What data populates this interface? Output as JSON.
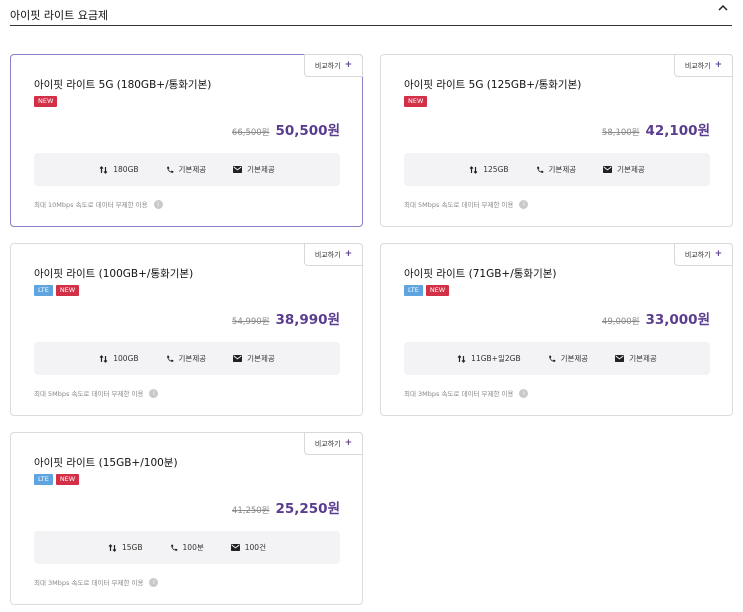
{
  "section": {
    "title": "아이핏 라이트 요금제",
    "collapse_icon": "chevron-up-icon"
  },
  "plans": [
    {
      "name": "아이핏 라이트 5G (180GB+/통화기본)",
      "badges": [
        {
          "label": "NEW",
          "type": "new"
        }
      ],
      "original_price": "66,500원",
      "sale_price": "50,500원",
      "data": "180GB",
      "voice": "기본제공",
      "sms": "기본제공",
      "footnote": "최대 10Mbps 속도로 데이터 무제한 이용",
      "compare_label": "비교하기",
      "selected": true
    },
    {
      "name": "아이핏 라이트 5G (125GB+/통화기본)",
      "badges": [
        {
          "label": "NEW",
          "type": "new"
        }
      ],
      "original_price": "58,100원",
      "sale_price": "42,100원",
      "data": "125GB",
      "voice": "기본제공",
      "sms": "기본제공",
      "footnote": "최대 5Mbps 속도로 데이터 무제한 이용",
      "compare_label": "비교하기",
      "selected": false
    },
    {
      "name": "아이핏 라이트 (100GB+/통화기본)",
      "badges": [
        {
          "label": "LTE",
          "type": "lte"
        },
        {
          "label": "NEW",
          "type": "new"
        }
      ],
      "original_price": "54,990원",
      "sale_price": "38,990원",
      "data": "100GB",
      "voice": "기본제공",
      "sms": "기본제공",
      "footnote": "최대 5Mbps 속도로 데이터 무제한 이용",
      "compare_label": "비교하기",
      "selected": false
    },
    {
      "name": "아이핏 라이트 (71GB+/통화기본)",
      "badges": [
        {
          "label": "LTE",
          "type": "lte"
        },
        {
          "label": "NEW",
          "type": "new"
        }
      ],
      "original_price": "49,000원",
      "sale_price": "33,000원",
      "data": "11GB+일2GB",
      "voice": "기본제공",
      "sms": "기본제공",
      "footnote": "최대 3Mbps 속도로 데이터 무제한 이용",
      "compare_label": "비교하기",
      "selected": false
    },
    {
      "name": "아이핏 라이트 (15GB+/100분)",
      "badges": [
        {
          "label": "LTE",
          "type": "lte"
        },
        {
          "label": "NEW",
          "type": "new"
        }
      ],
      "original_price": "41,250원",
      "sale_price": "25,250원",
      "data": "15GB",
      "voice": "100분",
      "sms": "100건",
      "footnote": "최대 3Mbps 속도로 데이터 무제한 이용",
      "compare_label": "비교하기",
      "selected": false
    }
  ],
  "icons": {
    "data": "data-arrows-icon",
    "voice": "phone-icon",
    "sms": "mail-icon",
    "info": "info-icon",
    "compare": "plus-icon"
  },
  "colors": {
    "accent": "#5b3d8f",
    "selected_border": "#8a80c8",
    "badge_new": "#d32f46",
    "badge_lte": "#5ea4df"
  }
}
